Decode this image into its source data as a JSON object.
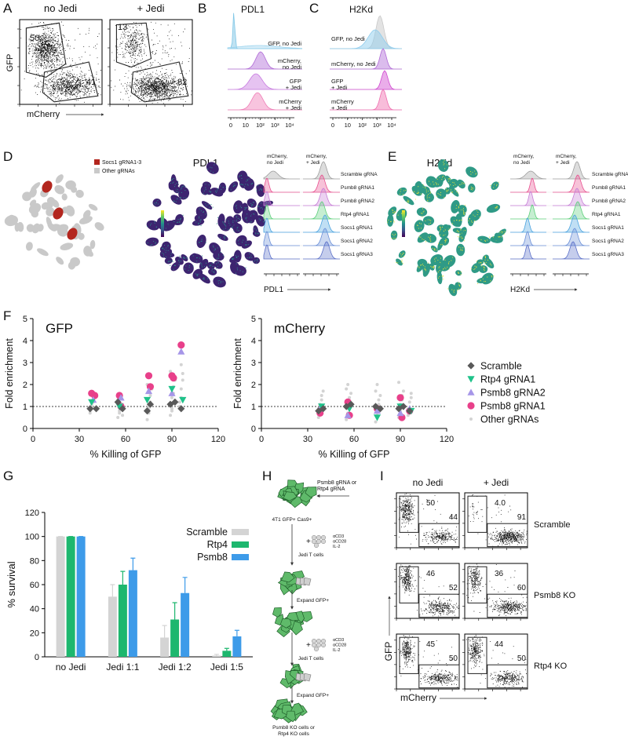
{
  "figure": {
    "panel_a": {
      "label": "A",
      "plots": [
        {
          "title": "no Jedi",
          "gates": [
            "50",
            "41"
          ]
        },
        {
          "title": "+ Jedi",
          "gates": [
            "13",
            "82"
          ]
        }
      ],
      "y_axis": "GFP",
      "x_axis": "mCherry"
    },
    "panel_b": {
      "label": "B",
      "title": "PDL1",
      "rows": [
        [
          "GFP, no Jedi"
        ],
        [
          "mCherry,",
          "no Jedi"
        ],
        [
          "GFP",
          "+ Jedi"
        ],
        [
          "mCherry",
          "+ Jedi"
        ]
      ],
      "x_ticks": [
        "0",
        "10",
        "10²",
        "10³",
        "10⁴"
      ]
    },
    "panel_c": {
      "label": "C",
      "title": "H2Kd",
      "rows": [
        [
          "GFP, no Jedi"
        ],
        [
          "mCherry, no Jedi"
        ],
        [
          "GFP",
          "+ Jedi"
        ],
        [
          "mCherry",
          "+ Jedi"
        ]
      ],
      "x_ticks": [
        "0",
        "10",
        "10²",
        "10³",
        "10⁴"
      ]
    },
    "panel_d": {
      "label": "D",
      "legend": [
        "Socs1 gRNA1-3",
        "Other gRNAs"
      ],
      "map_title": "PDL1",
      "columns": [
        [
          "mCherry,",
          "no Jedi"
        ],
        [
          "mCherry,",
          "+ Jedi"
        ]
      ],
      "rows": [
        "Scramble gRNA",
        "Psmb8 gRNA1",
        "Psmb8 gRNA2",
        "Rtp4 gRNA1",
        "Socs1 gRNA1",
        "Socs1 gRNA2",
        "Socs1 gRNA3"
      ],
      "x_axis": "PDL1"
    },
    "panel_e": {
      "label": "E",
      "map_title": "H2Kd",
      "columns": [
        [
          "mCherry,",
          "no Jedi"
        ],
        [
          "mCherry,",
          "+ Jedi"
        ]
      ],
      "rows": [
        "Scramble gRNA",
        "Psmb8 gRNA1",
        "Psmb8 gRNA2",
        "Rtp4 gRNA1",
        "Socs1 gRNA1",
        "Socs1 gRNA2",
        "Socs1 gRNA3"
      ],
      "x_axis": "H2Kd"
    },
    "panel_f": {
      "label": "F"
    },
    "panel_g": {
      "label": "G"
    },
    "panel_h": {
      "label": "H",
      "grna": [
        "Psmb8 gRNA or",
        "Rtp4 gRNA"
      ],
      "cells": "4T1 GFP+ Cas9+",
      "t_cell_steps": [
        {
          "stimulation": [
            "αCD3",
            "αCD28",
            "IL-2"
          ],
          "label": "Jedi T cells"
        },
        {
          "stimulation": [
            "αCD3",
            "αCD28",
            "IL-2"
          ],
          "label": "Jedi T cells"
        }
      ],
      "expand_steps": [
        "Expand GFP+",
        "Expand GFP+"
      ],
      "result": [
        "Psmb8 KO cells or",
        "Rtp4 KO cells"
      ]
    },
    "panel_i": {
      "label": "I",
      "columns": [
        "no Jedi",
        "+ Jedi"
      ],
      "rows": [
        {
          "name": "Scramble",
          "gates": [
            [
              "50",
              "44"
            ],
            [
              "4.0",
              "91"
            ]
          ]
        },
        {
          "name": "Psmb8 KO",
          "gates": [
            [
              "46",
              "52"
            ],
            [
              "36",
              "60"
            ]
          ]
        },
        {
          "name": "Rtp4 KO",
          "gates": [
            [
              "45",
              "50"
            ],
            [
              "44",
              "50"
            ]
          ]
        }
      ],
      "y_axis": "GFP",
      "x_axis": "mCherry"
    }
  },
  "chart_data": [
    {
      "type": "scatter",
      "title": "GFP",
      "xlabel": "% Killing of GFP",
      "ylabel": "Fold enrichment",
      "xlim": [
        0,
        120
      ],
      "xticks": [
        0,
        30,
        60,
        90,
        120
      ],
      "ylim": [
        0,
        5
      ],
      "yticks": [
        0,
        1,
        2,
        3,
        4,
        5
      ],
      "hline": 1,
      "series": [
        {
          "color": "#d3d3d3",
          "marker": "dot",
          "x": [
            37,
            38,
            38,
            39,
            39,
            40,
            37,
            38,
            55,
            56,
            56,
            57,
            57,
            58,
            55,
            56,
            58,
            74,
            75,
            75,
            76,
            76,
            77,
            74,
            75,
            89,
            90,
            90,
            91,
            91,
            92,
            89,
            90,
            95,
            96,
            96,
            97,
            97,
            96,
            95
          ],
          "values": [
            0.8,
            1.0,
            1.1,
            1.2,
            1.3,
            1.4,
            0.7,
            1.0,
            0.5,
            0.7,
            0.8,
            0.9,
            1.0,
            1.1,
            1.3,
            1.4,
            0.6,
            0.4,
            0.9,
            1.0,
            1.2,
            1.5,
            1.8,
            2.0,
            0.7,
            0.6,
            0.8,
            1.4,
            1.6,
            1.9,
            2.2,
            2.6,
            0.9,
            1.0,
            1.4,
            1.8,
            2.2,
            2.5,
            2.9,
            1.2
          ]
        },
        {
          "color": "#e8408a",
          "marker": "circle",
          "x": [
            38,
            40,
            56,
            57,
            75,
            76,
            90,
            91,
            96
          ],
          "values": [
            1.6,
            1.5,
            1.5,
            1.0,
            2.4,
            1.9,
            2.4,
            2.3,
            3.8
          ]
        },
        {
          "color": "#a696e8",
          "marker": "triangle-up",
          "x": [
            39,
            57,
            75,
            90,
            96
          ],
          "values": [
            1.3,
            1.4,
            1.7,
            1.6,
            3.5
          ]
        },
        {
          "color": "#1fc28a",
          "marker": "triangle-down",
          "x": [
            38,
            56,
            74,
            90,
            97
          ],
          "values": [
            1.2,
            1.0,
            1.3,
            1.8,
            1.3
          ]
        },
        {
          "color": "#595959",
          "marker": "diamond",
          "x": [
            37,
            41,
            55,
            58,
            74,
            76,
            89,
            92,
            96
          ],
          "values": [
            0.9,
            0.9,
            1.2,
            0.9,
            0.8,
            1.1,
            1.1,
            1.2,
            0.9
          ]
        }
      ]
    },
    {
      "type": "scatter",
      "title": "mCherry",
      "xlabel": "% Killing of GFP",
      "ylabel": "Fold enrichment",
      "xlim": [
        0,
        120
      ],
      "xticks": [
        0,
        30,
        60,
        90,
        120
      ],
      "ylim": [
        0,
        5
      ],
      "yticks": [
        0,
        1,
        2,
        3,
        4,
        5
      ],
      "hline": 1,
      "legend": "right",
      "series": [
        {
          "name": "Other gRNAs",
          "color": "#d3d3d3",
          "marker": "dot",
          "x": [
            37,
            38,
            38,
            39,
            39,
            40,
            37,
            55,
            56,
            56,
            57,
            57,
            58,
            55,
            56,
            74,
            75,
            75,
            76,
            76,
            77,
            74,
            75,
            89,
            90,
            90,
            91,
            91,
            92,
            89,
            95,
            96,
            96,
            97,
            97
          ],
          "values": [
            0.5,
            0.8,
            1.1,
            1.3,
            1.5,
            1.7,
            0.9,
            0.4,
            0.7,
            0.9,
            1.2,
            1.4,
            1.6,
            1.8,
            2.0,
            0.3,
            0.6,
            0.9,
            1.1,
            1.3,
            1.5,
            1.7,
            2.0,
            0.5,
            0.8,
            1.1,
            1.3,
            1.5,
            1.7,
            2.1,
            0.6,
            0.9,
            1.2,
            1.4,
            1.6
          ]
        },
        {
          "name": "Psmb8 gRNA1",
          "color": "#e8408a",
          "marker": "circle",
          "x": [
            38,
            56,
            57,
            75,
            90,
            91,
            96
          ],
          "values": [
            0.7,
            1.2,
            0.6,
            0.9,
            1.4,
            0.5,
            0.8
          ]
        },
        {
          "name": "Psmb8 gRNA2",
          "color": "#a696e8",
          "marker": "triangle-up",
          "x": [
            38,
            56,
            75,
            90,
            96
          ],
          "values": [
            0.9,
            0.6,
            0.8,
            0.7,
            0.9
          ]
        },
        {
          "name": "Rtp4 gRNA1",
          "color": "#1fc28a",
          "marker": "triangle-down",
          "x": [
            39,
            57,
            75,
            90,
            97
          ],
          "values": [
            1.0,
            0.9,
            0.5,
            1.0,
            0.8
          ]
        },
        {
          "name": "Scramble",
          "color": "#595959",
          "marker": "diamond",
          "x": [
            37,
            40,
            55,
            58,
            74,
            77,
            89,
            92,
            96
          ],
          "values": [
            0.8,
            0.9,
            1.0,
            1.1,
            1.0,
            0.9,
            0.9,
            1.0,
            0.8
          ]
        }
      ]
    },
    {
      "type": "bar",
      "ylabel": "% survival",
      "categories": [
        "no Jedi",
        "Jedi 1:1",
        "Jedi 1:2",
        "Jedi 1:5"
      ],
      "ylim": [
        0,
        120
      ],
      "yticks": [
        0,
        20,
        40,
        60,
        80,
        100,
        120
      ],
      "legend": "upper right",
      "series": [
        {
          "name": "Scramble",
          "color": "#d4d4d4",
          "values": [
            100,
            50,
            16,
            1
          ],
          "errors": [
            0,
            10,
            10,
            1
          ]
        },
        {
          "name": "Rtp4",
          "color": "#1db76e",
          "values": [
            100,
            60,
            31,
            5
          ],
          "errors": [
            0,
            11,
            14,
            2
          ]
        },
        {
          "name": "Psmb8",
          "color": "#3d9be9",
          "values": [
            100,
            72,
            53,
            17
          ],
          "errors": [
            0,
            10,
            13,
            5
          ]
        }
      ]
    }
  ]
}
